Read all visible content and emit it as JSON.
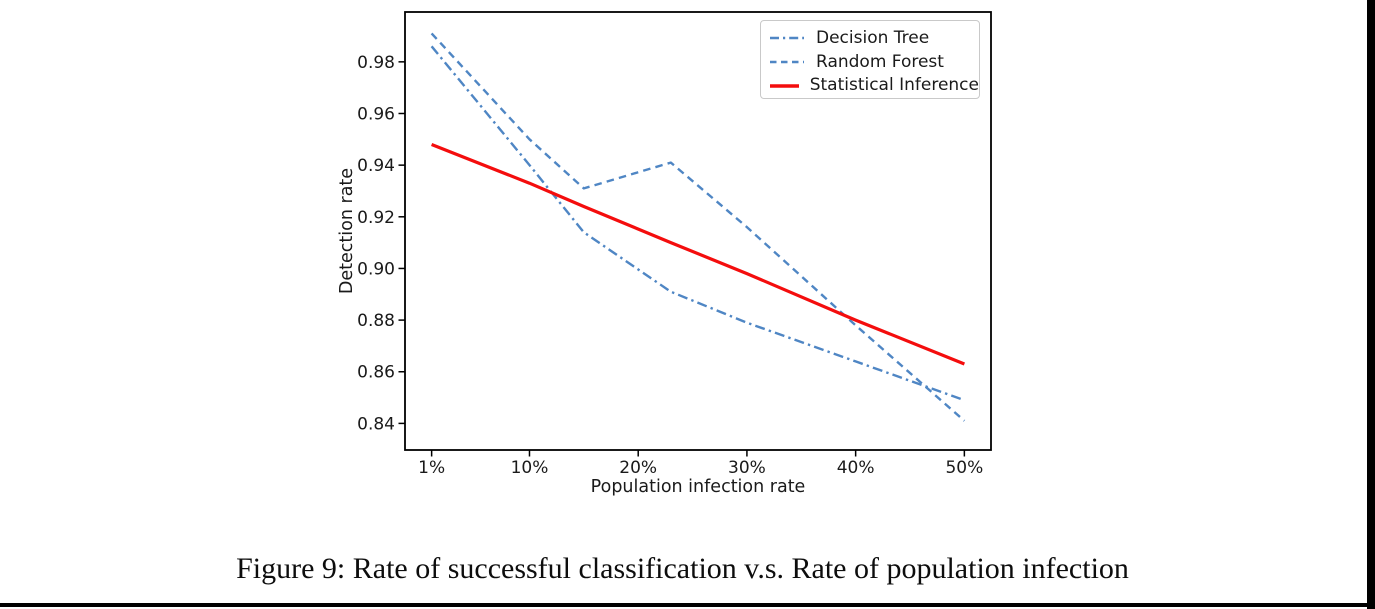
{
  "caption": {
    "text": "Figure 9: Rate of successful classification v.s. Rate of population infection"
  },
  "chart_data": {
    "type": "line",
    "title": "",
    "xlabel": "Population infection rate",
    "ylabel": "Detection rate",
    "xlim": [
      -1.45,
      52.45
    ],
    "ylim": [
      0.8297,
      0.9993
    ],
    "grid": false,
    "legend_position": "upper right",
    "axis_color": "#000000",
    "tick_label_color": "#1a1a1a",
    "x_ticks": {
      "values": [
        1,
        10,
        20,
        30,
        40,
        50
      ],
      "labels": [
        "1%",
        "10%",
        "20%",
        "30%",
        "40%",
        "50%"
      ]
    },
    "y_ticks": {
      "values": [
        0.84,
        0.86,
        0.88,
        0.9,
        0.92,
        0.94,
        0.96,
        0.98
      ],
      "labels": [
        "0.84",
        "0.86",
        "0.88",
        "0.90",
        "0.92",
        "0.94",
        "0.96",
        "0.98"
      ]
    },
    "series": [
      {
        "name": "Decision Tree",
        "style": "dashdot",
        "color": "#4f86c4",
        "width": 2.4,
        "x": [
          1,
          10,
          15,
          23,
          30,
          40,
          50
        ],
        "y": [
          0.986,
          0.94,
          0.914,
          0.891,
          0.879,
          0.864,
          0.849
        ]
      },
      {
        "name": "Random Forest",
        "style": "dashed",
        "color": "#4f86c4",
        "width": 2.4,
        "x": [
          1,
          10,
          15,
          23,
          30,
          40,
          50
        ],
        "y": [
          0.991,
          0.95,
          0.931,
          0.941,
          0.916,
          0.878,
          0.841
        ]
      },
      {
        "name": "Statistical Inference",
        "style": "solid",
        "color": "#f40d0d",
        "width": 3.2,
        "x": [
          1,
          10,
          15,
          23,
          30,
          40,
          50
        ],
        "y": [
          0.948,
          0.933,
          0.924,
          0.91,
          0.898,
          0.88,
          0.863
        ]
      }
    ]
  }
}
